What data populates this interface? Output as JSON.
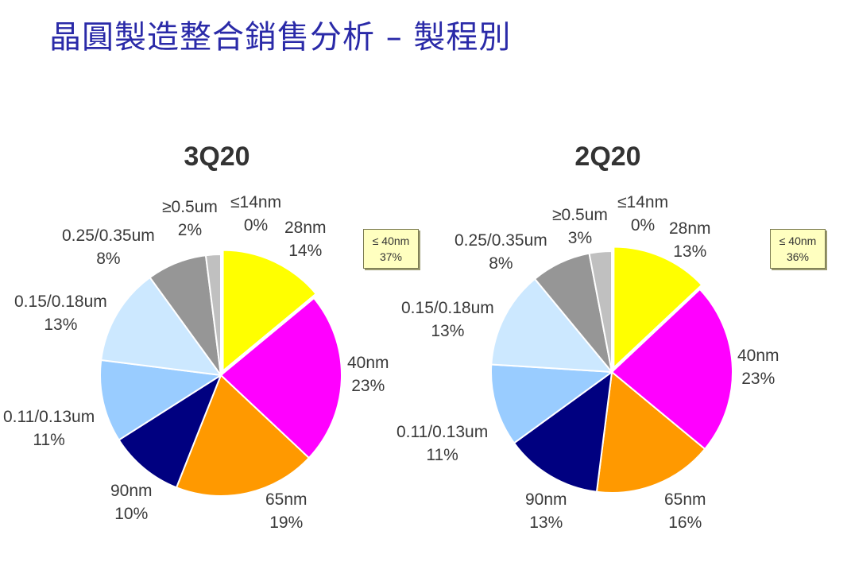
{
  "page": {
    "title": "晶圓製造整合銷售分析 – 製程別"
  },
  "chart_data": [
    {
      "type": "pie",
      "title": "3Q20",
      "summary": {
        "label": "≤ 40nm",
        "value": "37%"
      },
      "slices": [
        {
          "name": "28nm",
          "value": 14,
          "label": "14%",
          "color": "#ffff00"
        },
        {
          "name": "40nm",
          "value": 23,
          "label": "23%",
          "color": "#ff00ff"
        },
        {
          "name": "65nm",
          "value": 19,
          "label": "19%",
          "color": "#ff9900"
        },
        {
          "name": "90nm",
          "value": 10,
          "label": "10%",
          "color": "#000080"
        },
        {
          "name": "0.11/0.13um",
          "value": 11,
          "label": "11%",
          "color": "#99ccff"
        },
        {
          "name": "0.15/0.18um",
          "value": 13,
          "label": "13%",
          "color": "#cce8ff"
        },
        {
          "name": "0.25/0.35um",
          "value": 8,
          "label": "8%",
          "color": "#969696"
        },
        {
          "name": "≥0.5um",
          "value": 2,
          "label": "2%",
          "color": "#c0c0c0"
        },
        {
          "name": "≤14nm",
          "value": 0,
          "label": "0%",
          "color": "#ffffff"
        }
      ]
    },
    {
      "type": "pie",
      "title": "2Q20",
      "summary": {
        "label": "≤ 40nm",
        "value": "36%"
      },
      "slices": [
        {
          "name": "28nm",
          "value": 13,
          "label": "13%",
          "color": "#ffff00"
        },
        {
          "name": "40nm",
          "value": 23,
          "label": "23%",
          "color": "#ff00ff"
        },
        {
          "name": "65nm",
          "value": 16,
          "label": "16%",
          "color": "#ff9900"
        },
        {
          "name": "90nm",
          "value": 13,
          "label": "13%",
          "color": "#000080"
        },
        {
          "name": "0.11/0.13um",
          "value": 11,
          "label": "11%",
          "color": "#99ccff"
        },
        {
          "name": "0.15/0.18um",
          "value": 13,
          "label": "13%",
          "color": "#cce8ff"
        },
        {
          "name": "0.25/0.35um",
          "value": 8,
          "label": "8%",
          "color": "#969696"
        },
        {
          "name": "≥0.5um",
          "value": 3,
          "label": "3%",
          "color": "#c0c0c0"
        },
        {
          "name": "≤14nm",
          "value": 0,
          "label": "0%",
          "color": "#ffffff"
        }
      ]
    }
  ]
}
